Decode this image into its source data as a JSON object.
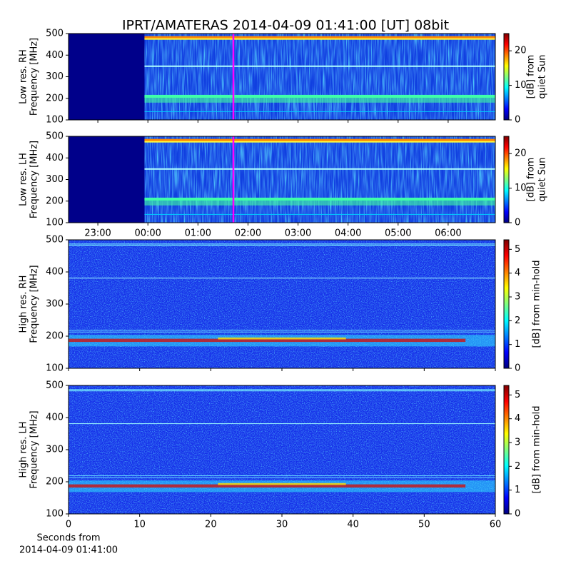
{
  "chart_data": [
    {
      "type": "spectrogram",
      "title": "IPRT/AMATERAS 2014-04-09 01:41:00 [UT]   08bit",
      "ylabel": [
        "Low res. RH",
        "Frequency [MHz]"
      ],
      "ylim": [
        100,
        500
      ],
      "yticks": [
        100,
        200,
        300,
        400,
        500
      ],
      "xlim": [
        22.414,
        30.943
      ],
      "xticks": [
        {
          "value": 23,
          "label": "23:00"
        },
        {
          "value": 24,
          "label": "00:00"
        },
        {
          "value": 25,
          "label": "01:00"
        },
        {
          "value": 26,
          "label": "02:00"
        },
        {
          "value": 27,
          "label": "03:00"
        },
        {
          "value": 28,
          "label": "04:00"
        },
        {
          "value": 29,
          "label": "05:00"
        },
        {
          "value": 30,
          "label": "06:00"
        }
      ],
      "show_xticklabels": false,
      "colorbar": {
        "label": [
          "[dB] from",
          "quiet Sun"
        ],
        "lim": [
          0,
          25
        ],
        "ticks": [
          0,
          10,
          20
        ]
      }
    },
    {
      "type": "spectrogram",
      "ylabel": [
        "Low res. LH",
        "Frequency [MHz]"
      ],
      "ylim": [
        100,
        500
      ],
      "yticks": [
        100,
        200,
        300,
        400,
        500
      ],
      "xlim": [
        22.414,
        30.943
      ],
      "xticks": [
        {
          "value": 23,
          "label": "23:00"
        },
        {
          "value": 24,
          "label": "00:00"
        },
        {
          "value": 25,
          "label": "01:00"
        },
        {
          "value": 26,
          "label": "02:00"
        },
        {
          "value": 27,
          "label": "03:00"
        },
        {
          "value": 28,
          "label": "04:00"
        },
        {
          "value": 29,
          "label": "05:00"
        },
        {
          "value": 30,
          "label": "06:00"
        }
      ],
      "show_xticklabels": true,
      "colorbar": {
        "label": [
          "[dB] from",
          "quiet Sun"
        ],
        "lim": [
          0,
          25
        ],
        "ticks": [
          0,
          10,
          20
        ]
      }
    },
    {
      "type": "spectrogram",
      "ylabel": [
        "High res. RH",
        "Frequency [MHz]"
      ],
      "ylim": [
        100,
        500
      ],
      "yticks": [
        100,
        200,
        300,
        400,
        500
      ],
      "xlim": [
        0,
        60
      ],
      "xticks": [
        0,
        10,
        20,
        30,
        40,
        50,
        60
      ],
      "show_xticklabels": false,
      "colorbar": {
        "label": [
          "[dB] from min-hold"
        ],
        "lim": [
          0,
          5.4
        ],
        "ticks": [
          0,
          1,
          2,
          3,
          4,
          5
        ]
      }
    },
    {
      "type": "spectrogram",
      "ylabel": [
        "High res. LH",
        "Frequency [MHz]"
      ],
      "ylim": [
        100,
        500
      ],
      "yticks": [
        100,
        200,
        300,
        400,
        500
      ],
      "xlim": [
        0,
        60
      ],
      "xticks": [
        0,
        10,
        20,
        30,
        40,
        50,
        60
      ],
      "show_xticklabels": true,
      "xlabel": [
        "Seconds from",
        "2014-04-09 01:41:00"
      ],
      "colorbar": {
        "label": [
          "[dB] from min-hold"
        ],
        "lim": [
          0,
          5.4
        ],
        "ticks": [
          0,
          1,
          2,
          3,
          4,
          5
        ]
      }
    }
  ]
}
